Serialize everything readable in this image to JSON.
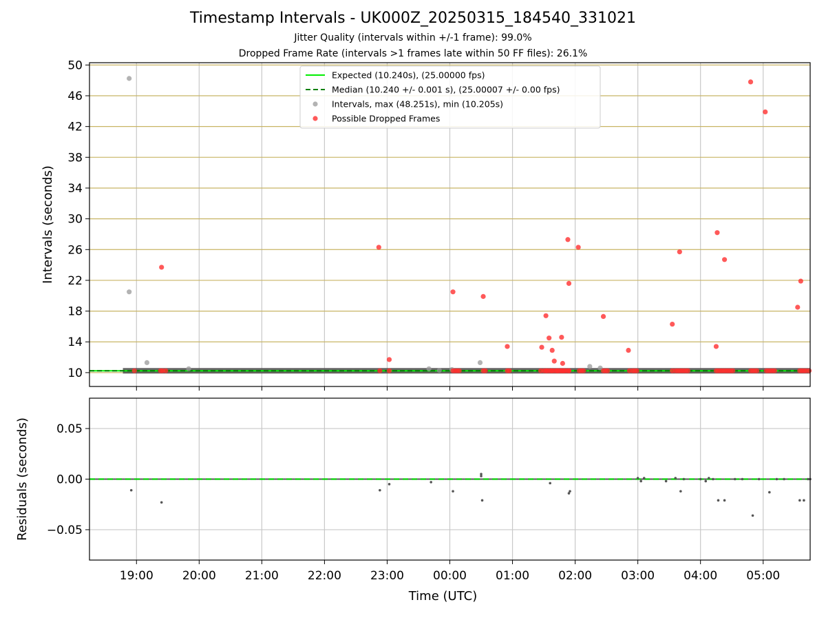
{
  "chart_data": [
    {
      "type": "scatter",
      "title": "Timestamp Intervals - UK000Z_20250315_184540_331021",
      "subtitle": [
        "Jitter Quality (intervals within +/-1 frame): 99.0%",
        "Dropped Frame Rate (intervals >1 frames late within 50 FF files): 26.1%"
      ],
      "xlabel": "",
      "ylabel": "Intervals (seconds)",
      "x_unit": "time (UTC)",
      "xlim": [
        "18:15",
        "05:45"
      ],
      "ylim": [
        8.2,
        50.3
      ],
      "yticks": [
        10,
        14,
        18,
        22,
        26,
        30,
        34,
        38,
        42,
        46,
        50
      ],
      "ytick_labels": [
        "10",
        "14",
        "18",
        "22",
        "26",
        "30",
        "34",
        "38",
        "42",
        "46",
        "50"
      ],
      "xticks": [
        "19:00",
        "20:00",
        "21:00",
        "22:00",
        "23:00",
        "00:00",
        "01:00",
        "02:00",
        "03:00",
        "04:00",
        "05:00"
      ],
      "grid": true,
      "legend_position": "top-center",
      "colors": {
        "expected": "#00ee00",
        "median": "#008000",
        "intervals": "#999999",
        "dropped": "#ff3030",
        "hgrid": "#c8b464",
        "vgrid": "#c8c8c8"
      },
      "series": [
        {
          "name": "Expected (10.240s), (25.00000 fps)",
          "kind": "hline",
          "y": 10.24
        },
        {
          "name": "Median (10.240 +/- 0.001 s), (25.00007 +/- 0.00 fps)",
          "kind": "hline-dashed",
          "y": 10.24
        },
        {
          "name": "Intervals, max (48.251s), min (10.205s)",
          "kind": "scatter",
          "x": [
            "18:53",
            "18:53",
            "19:10",
            "19:50",
            "23:40",
            "23:50",
            "00:02",
            "00:29",
            "02:14",
            "02:24"
          ],
          "y": [
            48.25,
            20.5,
            11.3,
            10.5,
            10.5,
            10.3,
            10.4,
            11.3,
            10.8,
            10.6
          ]
        },
        {
          "name": "Possible Dropped Frames",
          "kind": "scatter",
          "x": [
            "18:58",
            "19:23",
            "19:25",
            "19:28",
            "22:53",
            "23:02",
            "00:03",
            "00:05",
            "00:07",
            "00:09",
            "00:32",
            "00:34",
            "00:55",
            "00:57",
            "01:27",
            "01:30",
            "01:32",
            "01:33",
            "01:35",
            "01:37",
            "01:40",
            "01:42",
            "01:44",
            "01:46",
            "01:48",
            "01:50",
            "01:52",
            "01:54",
            "01:38",
            "01:43",
            "01:47",
            "01:49",
            "01:54",
            "02:04",
            "02:06",
            "02:08",
            "02:27",
            "02:29",
            "02:31",
            "02:52",
            "02:55",
            "02:57",
            "02:59",
            "03:33",
            "03:36",
            "03:38",
            "03:40",
            "03:42",
            "03:44",
            "03:46",
            "03:48",
            "04:15",
            "04:17",
            "04:19",
            "04:21",
            "04:23",
            "04:25",
            "04:27",
            "04:29",
            "04:31",
            "04:48",
            "04:50",
            "04:52",
            "04:54",
            "05:03",
            "05:05",
            "05:07",
            "05:09",
            "05:11",
            "05:35",
            "05:37",
            "05:39",
            "05:41",
            "05:44",
            "19:24",
            "22:52",
            "23:02",
            "00:03",
            "00:32",
            "00:55",
            "01:28",
            "01:32",
            "01:35",
            "01:38",
            "01:40",
            "01:47",
            "01:48",
            "01:53",
            "01:54",
            "02:03",
            "02:27",
            "02:51",
            "03:33",
            "03:40",
            "04:15",
            "04:16",
            "04:23",
            "04:48",
            "05:02",
            "05:33",
            "05:36"
          ],
          "y": [
            10.24,
            10.24,
            10.24,
            10.24,
            10.24,
            10.24,
            10.24,
            10.24,
            10.24,
            10.24,
            10.24,
            10.24,
            10.24,
            10.24,
            10.24,
            10.24,
            10.24,
            10.24,
            10.24,
            10.24,
            10.24,
            10.24,
            10.24,
            10.24,
            10.24,
            10.24,
            10.24,
            10.24,
            10.24,
            10.24,
            10.24,
            10.24,
            10.24,
            10.24,
            10.24,
            10.24,
            10.24,
            10.24,
            10.24,
            10.24,
            10.24,
            10.24,
            10.24,
            10.24,
            10.24,
            10.24,
            10.24,
            10.24,
            10.24,
            10.24,
            10.24,
            10.24,
            10.24,
            10.24,
            10.24,
            10.24,
            10.24,
            10.24,
            10.24,
            10.24,
            10.24,
            10.24,
            10.24,
            10.24,
            10.24,
            10.24,
            10.24,
            10.24,
            10.24,
            10.24,
            10.24,
            10.24,
            10.24,
            10.24,
            23.7,
            26.3,
            11.7,
            20.5,
            19.9,
            13.4,
            13.3,
            17.4,
            14.5,
            12.9,
            11.5,
            14.6,
            11.2,
            27.3,
            21.6,
            26.3,
            17.3,
            12.9,
            16.3,
            25.7,
            13.4,
            28.2,
            24.7,
            47.8,
            43.9,
            18.5,
            21.9
          ]
        }
      ]
    },
    {
      "type": "scatter",
      "title": "",
      "xlabel": "Time (UTC)",
      "ylabel": "Residuals (seconds)",
      "xlim": [
        "18:15",
        "05:45"
      ],
      "ylim": [
        -0.08,
        0.08
      ],
      "yticks": [
        -0.05,
        0.0,
        0.05
      ],
      "ytick_labels": [
        "−0.05",
        "0.00",
        "0.05"
      ],
      "xticks": [
        "19:00",
        "20:00",
        "21:00",
        "22:00",
        "23:00",
        "00:00",
        "01:00",
        "02:00",
        "03:00",
        "04:00",
        "05:00"
      ],
      "grid": true,
      "colors": {
        "zero_line": "#00cc00",
        "points": "#555555"
      },
      "series": [
        {
          "kind": "hline-dashed",
          "y": 0.0
        },
        {
          "kind": "scatter",
          "x": [
            "18:55",
            "19:24",
            "22:53",
            "23:02",
            "23:42",
            "00:03",
            "00:30",
            "00:30",
            "00:31",
            "01:36",
            "01:54",
            "01:55",
            "03:00",
            "03:03",
            "03:06",
            "03:27",
            "03:36",
            "03:41",
            "03:44",
            "04:00",
            "04:05",
            "04:08",
            "04:12",
            "04:17",
            "04:23",
            "04:33",
            "04:40",
            "04:50",
            "04:56",
            "05:06",
            "05:13",
            "05:20",
            "05:35",
            "05:39",
            "05:43",
            "05:45"
          ],
          "y": [
            -0.011,
            -0.023,
            -0.011,
            -0.005,
            -0.003,
            -0.012,
            0.005,
            0.003,
            -0.021,
            -0.004,
            -0.014,
            -0.012,
            0.001,
            -0.002,
            0.001,
            -0.002,
            0.001,
            -0.012,
            0.0,
            0.0,
            -0.002,
            0.001,
            0.0,
            -0.021,
            -0.021,
            0.0,
            0.0,
            -0.036,
            0.0,
            -0.013,
            0.0,
            0.0,
            -0.021,
            -0.021,
            0.0,
            0.0
          ]
        }
      ]
    }
  ]
}
